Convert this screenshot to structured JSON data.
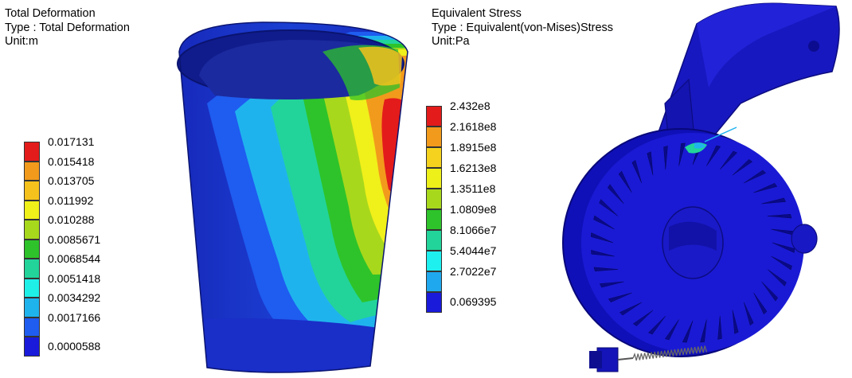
{
  "left_panel": {
    "header": {
      "title": "Total Deformation",
      "type_line": "Type : Total Deformation",
      "unit_line": "Unit:m"
    },
    "legend": [
      {
        "value": "0.017131",
        "color": "#e31b1b"
      },
      {
        "value": "0.015418",
        "color": "#f29a1c"
      },
      {
        "value": "0.013705",
        "color": "#f5c21d"
      },
      {
        "value": "0.011992",
        "color": "#f0f01a"
      },
      {
        "value": "0.010288",
        "color": "#a8d81c"
      },
      {
        "value": "0.0085671",
        "color": "#2ec32a"
      },
      {
        "value": "0.0068544",
        "color": "#22d49a"
      },
      {
        "value": "0.0051418",
        "color": "#1ef0e8"
      },
      {
        "value": "0.0034292",
        "color": "#1fb3ee"
      },
      {
        "value": "0.0017166",
        "color": "#1f5cf0"
      },
      {
        "value": "0.0000588",
        "color": "#1a1adb"
      }
    ]
  },
  "right_panel": {
    "header": {
      "title": "Equivalent Stress",
      "type_line": "Type : Equivalent(von-Mises)Stress",
      "unit_line": "Unit:Pa"
    },
    "legend": [
      {
        "value": "2.432e8",
        "color": "#e31b1b"
      },
      {
        "value": "2.1618e8",
        "color": "#f29a1c"
      },
      {
        "value": "1.8915e8",
        "color": "#f5d21d"
      },
      {
        "value": "1.6213e8",
        "color": "#eef01a"
      },
      {
        "value": "1.3511e8",
        "color": "#a8d81c"
      },
      {
        "value": "1.0809e8",
        "color": "#2ec32a"
      },
      {
        "value": "8.1066e7",
        "color": "#22d49a"
      },
      {
        "value": "5.4044e7",
        "color": "#1ef0f0"
      },
      {
        "value": "2.7022e7",
        "color": "#1fa8ee"
      },
      {
        "value": "0.069395",
        "color": "#1a1adb"
      }
    ]
  }
}
